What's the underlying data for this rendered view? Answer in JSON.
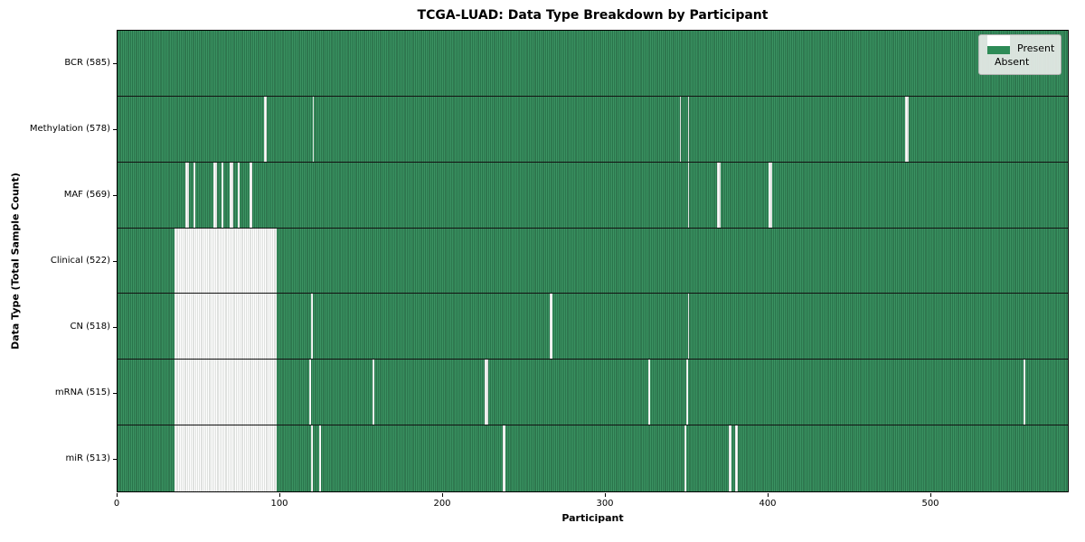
{
  "title": "TCGA-LUAD: Data Type Breakdown by Participant",
  "xlabel": "Participant",
  "ylabel": "Data Type (Total Sample Count)",
  "legend": {
    "present_label": "Present",
    "absent_label": "Absent"
  },
  "colors": {
    "present_green": "#2e8b57",
    "present_green_dark": "#225c3c",
    "present_green_light": "#459a6b",
    "absent_white": "#ffffff",
    "absent_stripe_gray": "#bfc3bf",
    "row_divider": "#121212",
    "legend_border": "#b3b3b3",
    "legend_background": "#e8ece8"
  },
  "chart_data": {
    "type": "heatmap",
    "title": "TCGA-LUAD: Data Type Breakdown by Participant",
    "xlabel": "Participant",
    "ylabel": "Data Type (Total Sample Count)",
    "x_ticks": [
      0,
      100,
      200,
      300,
      400,
      500
    ],
    "x_range": [
      0,
      585
    ],
    "n_participants": 585,
    "grid": false,
    "legend_position": "upper right",
    "legend": [
      {
        "label": "Present",
        "color": "#2e8b57"
      },
      {
        "label": "Absent",
        "color": "#ffffff"
      }
    ],
    "rows": [
      {
        "label": "BCR (585)",
        "data_type": "BCR",
        "present_count": 585,
        "absent_segments": []
      },
      {
        "label": "Methylation (578)",
        "data_type": "Methylation",
        "present_count": 578,
        "absent_segments": [
          [
            90,
            91
          ],
          [
            120,
            120
          ],
          [
            346,
            346
          ],
          [
            351,
            351
          ],
          [
            485,
            486
          ]
        ]
      },
      {
        "label": "MAF (569)",
        "data_type": "MAF",
        "present_count": 569,
        "absent_segments": [
          [
            42,
            43
          ],
          [
            47,
            47
          ],
          [
            59,
            60
          ],
          [
            64,
            64
          ],
          [
            69,
            70
          ],
          [
            74,
            74
          ],
          [
            81,
            82
          ],
          [
            351,
            351
          ],
          [
            369,
            370
          ],
          [
            401,
            402
          ]
        ]
      },
      {
        "label": "Clinical (522)",
        "data_type": "Clinical",
        "present_count": 522,
        "absent_segments": [
          [
            35,
            97
          ]
        ]
      },
      {
        "label": "CN (518)",
        "data_type": "CN",
        "present_count": 518,
        "absent_segments": [
          [
            35,
            97
          ],
          [
            119,
            119
          ],
          [
            266,
            267
          ],
          [
            351,
            351
          ]
        ]
      },
      {
        "label": "mRNA (515)",
        "data_type": "mRNA",
        "present_count": 515,
        "absent_segments": [
          [
            35,
            97
          ],
          [
            118,
            118
          ],
          [
            157,
            157
          ],
          [
            226,
            227
          ],
          [
            327,
            327
          ],
          [
            350,
            350
          ],
          [
            558,
            558
          ]
        ]
      },
      {
        "label": "miR (513)",
        "data_type": "miR",
        "present_count": 513,
        "absent_segments": [
          [
            35,
            97
          ],
          [
            119,
            119
          ],
          [
            124,
            124
          ],
          [
            237,
            238
          ],
          [
            349,
            349
          ],
          [
            376,
            377
          ],
          [
            380,
            381
          ]
        ]
      }
    ]
  }
}
